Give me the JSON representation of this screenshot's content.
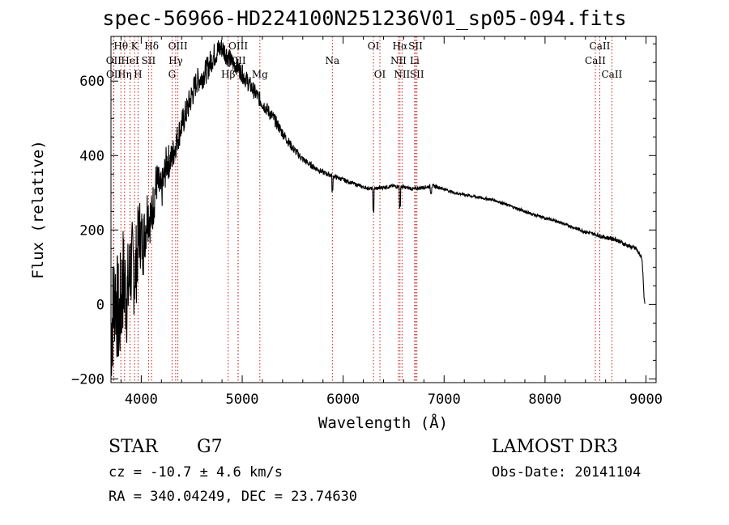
{
  "chart_data": {
    "type": "line",
    "title": "spec-56966-HD224100N251236V01_sp05-094.fits",
    "xlabel": "Wavelength (Å)",
    "ylabel": "Flux (relative)",
    "xlim": [
      3700,
      9100
    ],
    "ylim": [
      -210,
      720
    ],
    "x_ticks": [
      4000,
      5000,
      6000,
      7000,
      8000,
      9000
    ],
    "y_ticks": [
      -200,
      0,
      200,
      400,
      600
    ],
    "series": [
      {
        "x": [
          3700,
          3740,
          3780,
          3820,
          3860,
          3900,
          3940,
          3980,
          4020,
          4060,
          4100,
          4150,
          4200,
          4250,
          4300,
          4350,
          4400,
          4450,
          4500,
          4550,
          4600,
          4650,
          4700,
          4750,
          4800,
          4850,
          4900,
          4950,
          5000,
          5050,
          5100,
          5150,
          5200,
          5300,
          5400,
          5500,
          5600,
          5700,
          5800,
          5900,
          6000,
          6100,
          6200,
          6300,
          6400,
          6500,
          6600,
          6700,
          6800,
          6900,
          7000,
          7100,
          7200,
          7300,
          7400,
          7500,
          7600,
          7700,
          7800,
          7900,
          8000,
          8100,
          8200,
          8300,
          8400,
          8500,
          8600,
          8700,
          8800,
          8900,
          8960,
          8970,
          8980,
          8990
        ],
        "y": [
          -80,
          40,
          -50,
          70,
          20,
          110,
          80,
          200,
          160,
          250,
          230,
          330,
          300,
          380,
          390,
          440,
          480,
          520,
          560,
          600,
          610,
          630,
          660,
          680,
          690,
          670,
          650,
          640,
          620,
          600,
          580,
          560,
          540,
          505,
          460,
          420,
          390,
          370,
          355,
          345,
          335,
          325,
          315,
          310,
          315,
          318,
          315,
          310,
          315,
          318,
          310,
          300,
          295,
          290,
          285,
          280,
          270,
          260,
          250,
          240,
          232,
          225,
          215,
          205,
          195,
          188,
          180,
          175,
          160,
          150,
          125,
          80,
          20,
          0
        ],
        "jitter": [
          170,
          150,
          160,
          150,
          140,
          130,
          120,
          100,
          90,
          80,
          70,
          60,
          55,
          50,
          45,
          40,
          40,
          40,
          40,
          35,
          35,
          35,
          35,
          35,
          30,
          30,
          25,
          25,
          25,
          25,
          22,
          22,
          20,
          18,
          15,
          12,
          10,
          8,
          7,
          6,
          6,
          5,
          5,
          5,
          5,
          5,
          5,
          5,
          5,
          5,
          4,
          4,
          4,
          4,
          4,
          4,
          4,
          4,
          4,
          4,
          4,
          4,
          4,
          4,
          5,
          5,
          6,
          6,
          6,
          6,
          6,
          4,
          2,
          0
        ]
      }
    ],
    "line_markers": [
      {
        "name": "Hθ",
        "wl": 3798,
        "row": 0
      },
      {
        "name": "K",
        "wl": 3934,
        "row": 0
      },
      {
        "name": "Hδ",
        "wl": 4102,
        "row": 0
      },
      {
        "name": "OIII",
        "wl": 4363,
        "row": 0
      },
      {
        "name": "OIII",
        "wl": 4960,
        "row": 0
      },
      {
        "name": "OI",
        "wl": 6300,
        "row": 0
      },
      {
        "name": "Hα",
        "wl": 6563,
        "row": 0
      },
      {
        "name": "SII",
        "wl": 6717,
        "row": 0
      },
      {
        "name": "CaII",
        "wl": 8542,
        "row": 0
      },
      {
        "name": "OII",
        "wl": 3727,
        "row": 1
      },
      {
        "name": "HeI",
        "wl": 3889,
        "row": 1
      },
      {
        "name": "SII",
        "wl": 4072,
        "row": 1
      },
      {
        "name": "Hγ",
        "wl": 4341,
        "row": 1
      },
      {
        "name": "OII",
        "wl": 4959,
        "row": 1
      },
      {
        "name": "Na",
        "wl": 5893,
        "row": 1
      },
      {
        "name": "NII",
        "wl": 6548,
        "row": 1
      },
      {
        "name": "Li",
        "wl": 6708,
        "row": 1
      },
      {
        "name": "CaII",
        "wl": 8498,
        "row": 1
      },
      {
        "name": "OII",
        "wl": 3729,
        "row": 2
      },
      {
        "name": "Hη",
        "wl": 3835,
        "row": 2
      },
      {
        "name": "H",
        "wl": 3968,
        "row": 2
      },
      {
        "name": "G",
        "wl": 4305,
        "row": 2
      },
      {
        "name": "Hβ",
        "wl": 4861,
        "row": 2
      },
      {
        "name": "Mg",
        "wl": 5175,
        "row": 2
      },
      {
        "name": "OI",
        "wl": 6364,
        "row": 2
      },
      {
        "name": "NII",
        "wl": 6583,
        "row": 2
      },
      {
        "name": "SII",
        "wl": 6731,
        "row": 2
      },
      {
        "name": "CaII",
        "wl": 8662,
        "row": 2
      }
    ],
    "marker_color": "#c00000",
    "line_color": "#000000",
    "grid": false
  },
  "info": {
    "object_class": "STAR",
    "subclass": "G7",
    "survey": "LAMOST DR3",
    "redshift": "cz = -10.7 ± 4.6 km/s",
    "obs_date": "Obs-Date: 20141104",
    "coords": "RA = 340.04249, DEC =  23.74630"
  }
}
